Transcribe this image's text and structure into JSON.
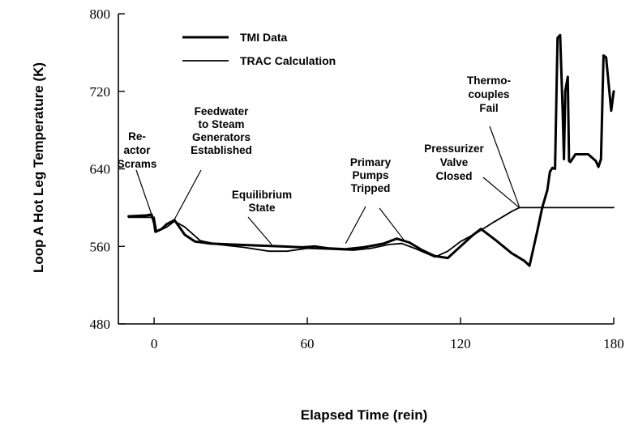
{
  "chart_data": {
    "type": "line",
    "title": "",
    "xlabel": "Elapsed Time (rein)",
    "ylabel": "Loop A Hot Leg Temperature (K)",
    "xlim": [
      -14,
      180
    ],
    "ylim": [
      480,
      800
    ],
    "x_ticks": [
      0,
      60,
      120,
      180
    ],
    "y_ticks": [
      480,
      560,
      640,
      720,
      800
    ],
    "grid": false,
    "legend_position": "top-left",
    "series": [
      {
        "name": "TMI Data",
        "stroke_width": 3,
        "points": [
          [
            -10,
            591
          ],
          [
            -3,
            592
          ],
          [
            -1,
            593
          ],
          [
            0,
            584
          ],
          [
            0.5,
            575
          ],
          [
            3,
            578
          ],
          [
            5,
            583
          ],
          [
            8,
            587
          ],
          [
            12,
            572
          ],
          [
            16,
            565
          ],
          [
            22,
            563
          ],
          [
            30,
            562
          ],
          [
            40,
            561
          ],
          [
            50,
            560
          ],
          [
            58,
            559
          ],
          [
            63,
            560
          ],
          [
            68,
            558
          ],
          [
            75,
            557
          ],
          [
            82,
            559
          ],
          [
            86,
            561
          ],
          [
            90,
            563
          ],
          [
            95,
            568
          ],
          [
            100,
            564
          ],
          [
            105,
            556
          ],
          [
            110,
            550
          ],
          [
            115,
            548
          ],
          [
            120,
            560
          ],
          [
            125,
            572
          ],
          [
            128,
            578
          ],
          [
            134,
            566
          ],
          [
            140,
            553
          ],
          [
            145,
            545
          ],
          [
            147,
            540
          ],
          [
            150,
            575
          ],
          [
            152,
            600
          ],
          [
            154,
            618
          ],
          [
            155,
            637
          ],
          [
            156,
            641
          ],
          [
            157,
            640
          ],
          [
            158,
            775
          ],
          [
            159,
            778
          ],
          [
            160,
            700
          ],
          [
            160.5,
            650
          ],
          [
            161,
            720
          ],
          [
            162,
            735
          ],
          [
            162.5,
            648
          ],
          [
            163,
            647
          ],
          [
            165,
            655
          ],
          [
            170,
            655
          ],
          [
            173,
            648
          ],
          [
            174,
            642
          ],
          [
            175,
            650
          ],
          [
            176,
            757
          ],
          [
            177,
            755
          ],
          [
            179,
            700
          ],
          [
            180,
            720
          ]
        ]
      },
      {
        "name": "TRAC Calculation",
        "stroke_width": 1.8,
        "points": [
          [
            -10,
            590
          ],
          [
            -2,
            590
          ],
          [
            0,
            590
          ],
          [
            1,
            575
          ],
          [
            5,
            580
          ],
          [
            8,
            586
          ],
          [
            12,
            580
          ],
          [
            18,
            566
          ],
          [
            25,
            562
          ],
          [
            35,
            559
          ],
          [
            45,
            555
          ],
          [
            52,
            555
          ],
          [
            60,
            558
          ],
          [
            70,
            557
          ],
          [
            78,
            556
          ],
          [
            85,
            558
          ],
          [
            92,
            562
          ],
          [
            97,
            563
          ],
          [
            102,
            558
          ],
          [
            110,
            549
          ],
          [
            115,
            555
          ],
          [
            120,
            565
          ],
          [
            127,
            575
          ],
          [
            133,
            585
          ],
          [
            140,
            596
          ],
          [
            143,
            600
          ],
          [
            150,
            600
          ],
          [
            160,
            600
          ],
          [
            170,
            600
          ],
          [
            180,
            600
          ]
        ]
      }
    ],
    "legend": [
      {
        "name": "TMI Data",
        "stroke_width": 3
      },
      {
        "name": "TRAC Calculation",
        "stroke_width": 1.8
      }
    ],
    "annotations": [
      {
        "lines": [
          "Re-",
          "actor",
          "Scrams"
        ],
        "pointer": [
          -1,
          593
        ]
      },
      {
        "lines": [
          "Feedwater",
          "to Steam",
          "Generators",
          "Established"
        ],
        "pointer": [
          8,
          588
        ]
      },
      {
        "lines": [
          "Equilibrium",
          "State"
        ],
        "pointer": [
          46,
          562
        ]
      },
      {
        "lines": [
          "Primary",
          "Pumps",
          "Tripped"
        ],
        "pointer": [
          75,
          563
        ]
      },
      {
        "lines": [
          "Pressurizer",
          "Valve",
          "Closed"
        ],
        "pointer": [
          143,
          600
        ]
      },
      {
        "lines": [
          "Thermo-",
          "couples",
          "Fail"
        ],
        "pointer": [
          143,
          601
        ]
      }
    ]
  }
}
